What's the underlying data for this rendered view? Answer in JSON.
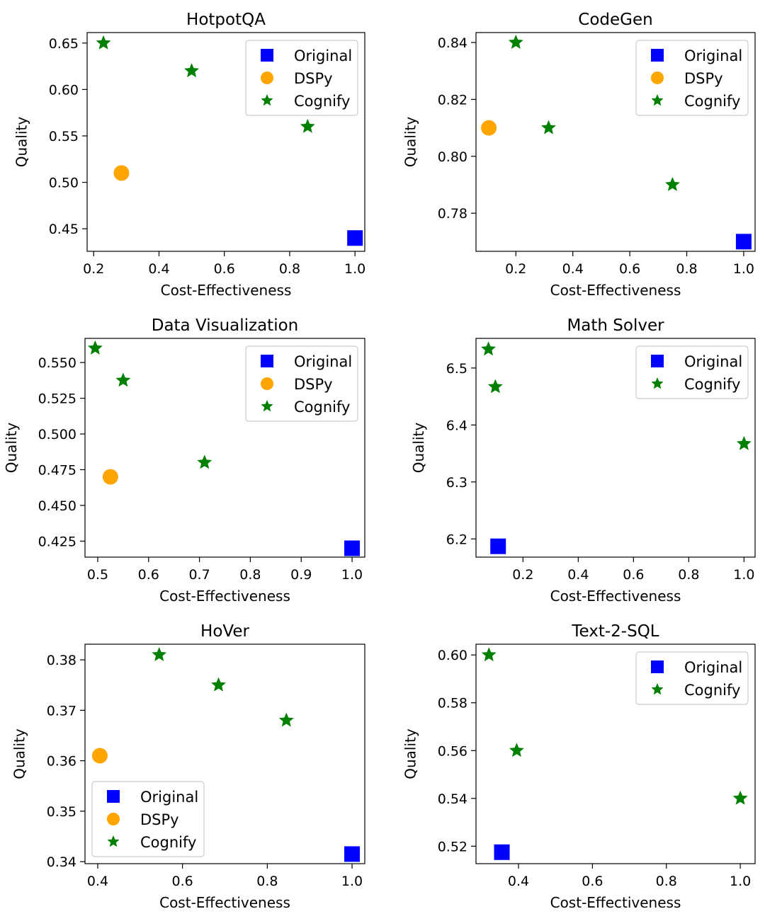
{
  "colors": {
    "original": "#0000ff",
    "dspy": "#ffa500",
    "cognify": "#008000"
  },
  "chart_data": [
    {
      "type": "scatter",
      "title": "HotpotQA",
      "xlabel": "Cost-Effectiveness",
      "ylabel": "Quality",
      "xlim": [
        0.18,
        1.03
      ],
      "ylim": [
        0.4257,
        0.6613
      ],
      "xticks": [
        0.2,
        0.4,
        0.6,
        0.8,
        1.0
      ],
      "xtick_labels": [
        "0.2",
        "0.4",
        "0.6",
        "0.8",
        "1.0"
      ],
      "yticks": [
        0.45,
        0.5,
        0.55,
        0.6,
        0.65
      ],
      "ytick_labels": [
        "0.45",
        "0.50",
        "0.55",
        "0.60",
        "0.65"
      ],
      "legend": "top-right",
      "series": [
        {
          "name": "Original",
          "marker": "square",
          "points": [
            [
              1.0,
              0.44
            ]
          ]
        },
        {
          "name": "DSPy",
          "marker": "circle",
          "points": [
            [
              0.285,
              0.51
            ]
          ]
        },
        {
          "name": "Cognify",
          "marker": "star",
          "points": [
            [
              0.23,
              0.65
            ],
            [
              0.5,
              0.62
            ],
            [
              0.855,
              0.56
            ]
          ]
        }
      ]
    },
    {
      "type": "scatter",
      "title": "CodeGen",
      "xlabel": "Cost-Effectiveness",
      "ylabel": "Quality",
      "xlim": [
        0.06,
        1.04
      ],
      "ylim": [
        0.7666,
        0.8435
      ],
      "xticks": [
        0.2,
        0.4,
        0.6,
        0.8,
        1.0
      ],
      "xtick_labels": [
        "0.2",
        "0.4",
        "0.6",
        "0.8",
        "1.0"
      ],
      "yticks": [
        0.78,
        0.8,
        0.82,
        0.84
      ],
      "ytick_labels": [
        "0.78",
        "0.80",
        "0.82",
        "0.84"
      ],
      "legend": "top-right",
      "series": [
        {
          "name": "Original",
          "marker": "square",
          "points": [
            [
              1.0,
              0.77
            ]
          ]
        },
        {
          "name": "DSPy",
          "marker": "circle",
          "points": [
            [
              0.105,
              0.81
            ]
          ]
        },
        {
          "name": "Cognify",
          "marker": "star",
          "points": [
            [
              0.2,
              0.84
            ],
            [
              0.315,
              0.81
            ],
            [
              0.75,
              0.79
            ]
          ]
        }
      ]
    },
    {
      "type": "scatter",
      "title": "Data Visualization",
      "xlabel": "Cost-Effectiveness",
      "ylabel": "Quality",
      "xlim": [
        0.475,
        1.025
      ],
      "ylim": [
        0.4138,
        0.5669
      ],
      "xticks": [
        0.5,
        0.6,
        0.7,
        0.8,
        0.9,
        1.0
      ],
      "xtick_labels": [
        "0.5",
        "0.6",
        "0.7",
        "0.8",
        "0.9",
        "1.0"
      ],
      "yticks": [
        0.425,
        0.45,
        0.475,
        0.5,
        0.525,
        0.55
      ],
      "ytick_labels": [
        "0.425",
        "0.450",
        "0.475",
        "0.500",
        "0.525",
        "0.550"
      ],
      "legend": "top-right",
      "series": [
        {
          "name": "Original",
          "marker": "square",
          "points": [
            [
              1.0,
              0.42
            ]
          ]
        },
        {
          "name": "DSPy",
          "marker": "circle",
          "points": [
            [
              0.525,
              0.47
            ]
          ]
        },
        {
          "name": "Cognify",
          "marker": "star",
          "points": [
            [
              0.495,
              0.56
            ],
            [
              0.55,
              0.5375
            ],
            [
              0.71,
              0.48
            ]
          ]
        }
      ]
    },
    {
      "type": "scatter",
      "title": "Math Solver",
      "xlabel": "Cost-Effectiveness",
      "ylabel": "Quality",
      "xlim": [
        0.03,
        1.04
      ],
      "ylim": [
        6.168,
        6.552
      ],
      "xticks": [
        0.2,
        0.4,
        0.6,
        0.8,
        1.0
      ],
      "xtick_labels": [
        "0.2",
        "0.4",
        "0.6",
        "0.8",
        "1.0"
      ],
      "yticks": [
        6.2,
        6.3,
        6.4,
        6.5
      ],
      "ytick_labels": [
        "6.2",
        "6.3",
        "6.4",
        "6.5"
      ],
      "legend": "top-right",
      "series": [
        {
          "name": "Original",
          "marker": "square",
          "points": [
            [
              0.11,
              6.187
            ]
          ]
        },
        {
          "name": "Cognify",
          "marker": "star",
          "points": [
            [
              0.075,
              6.533
            ],
            [
              0.1,
              6.467
            ],
            [
              1.0,
              6.367
            ]
          ]
        }
      ]
    },
    {
      "type": "scatter",
      "title": "HoVer",
      "xlabel": "Cost-Effectiveness",
      "ylabel": "Quality",
      "xlim": [
        0.37,
        1.03
      ],
      "ylim": [
        0.3396,
        0.3831
      ],
      "xticks": [
        0.4,
        0.6,
        0.8,
        1.0
      ],
      "xtick_labels": [
        "0.4",
        "0.6",
        "0.8",
        "1.0"
      ],
      "yticks": [
        0.34,
        0.35,
        0.36,
        0.37,
        0.38
      ],
      "ytick_labels": [
        "0.34",
        "0.35",
        "0.36",
        "0.37",
        "0.38"
      ],
      "legend": "bottom-left",
      "series": [
        {
          "name": "Original",
          "marker": "square",
          "points": [
            [
              1.0,
              0.3415
            ]
          ]
        },
        {
          "name": "DSPy",
          "marker": "circle",
          "points": [
            [
              0.405,
              0.361
            ]
          ]
        },
        {
          "name": "Cognify",
          "marker": "star",
          "points": [
            [
              0.545,
              0.381
            ],
            [
              0.685,
              0.375
            ],
            [
              0.845,
              0.368
            ]
          ]
        }
      ]
    },
    {
      "type": "scatter",
      "title": "Text-2-SQL",
      "xlabel": "Cost-Effectiveness",
      "ylabel": "Quality",
      "xlim": [
        0.285,
        1.04
      ],
      "ylim": [
        0.5127,
        0.6045
      ],
      "xticks": [
        0.4,
        0.6,
        0.8,
        1.0
      ],
      "xtick_labels": [
        "0.4",
        "0.6",
        "0.8",
        "1.0"
      ],
      "yticks": [
        0.52,
        0.54,
        0.56,
        0.58,
        0.6
      ],
      "ytick_labels": [
        "0.52",
        "0.54",
        "0.56",
        "0.58",
        "0.60"
      ],
      "legend": "top-right",
      "series": [
        {
          "name": "Original",
          "marker": "square",
          "points": [
            [
              0.355,
              0.5175
            ]
          ]
        },
        {
          "name": "Cognify",
          "marker": "star",
          "points": [
            [
              0.32,
              0.6
            ],
            [
              0.395,
              0.56
            ],
            [
              1.0,
              0.54
            ]
          ]
        }
      ]
    }
  ]
}
